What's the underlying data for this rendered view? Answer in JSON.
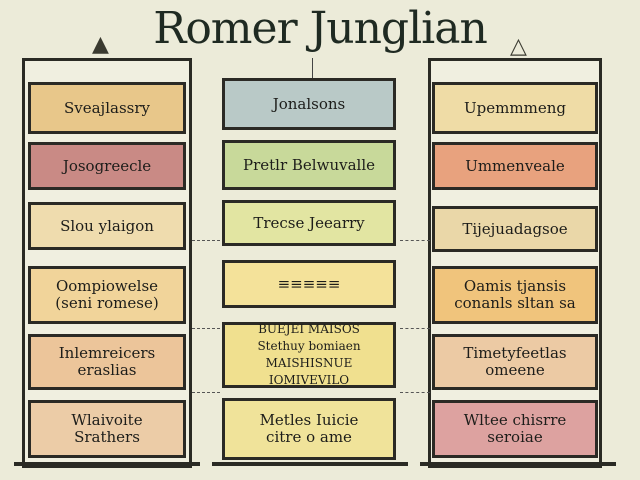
{
  "title": "Romer Junglian",
  "colors": {
    "background": "#ecebd9",
    "frame": "#2a2a24"
  },
  "columns": [
    {
      "name": "left",
      "boxes": [
        {
          "lines": [
            "Sveajlassry"
          ],
          "color": "#e8c78a"
        },
        {
          "lines": [
            "Josogreecle"
          ],
          "color": "#c98a85"
        },
        {
          "lines": [
            "Slou ylaigon"
          ],
          "color": "#efdcae"
        },
        {
          "lines": [
            "Oompiowelse",
            "(seni  romese)"
          ],
          "color": "#f1d49a"
        },
        {
          "lines": [
            "Inlemreicers",
            "eraslias"
          ],
          "color": "#ecc59a"
        },
        {
          "lines": [
            "Wlaivoite",
            "Srathers"
          ],
          "color": "#eccca7"
        }
      ]
    },
    {
      "name": "middle",
      "boxes": [
        {
          "lines": [
            "Jonalsons"
          ],
          "color": "#b9c9c7"
        },
        {
          "lines": [
            "Pretlr Belwuvalle"
          ],
          "color": "#c8d99a"
        },
        {
          "lines": [
            "Trecse Jeearry"
          ],
          "color": "#e2e5a2"
        },
        {
          "lines": [
            "≡≡≡≡≡"
          ],
          "color": "#f4e29a"
        },
        {
          "lines": [
            "BUEJEI MAISOS",
            "Stethuy bomiaen",
            "MAISHISNUE IOMIVEVILO"
          ],
          "color": "#f0e08f"
        },
        {
          "lines": [
            "Metles Iuicie",
            "citre o ame"
          ],
          "color": "#f0e39a"
        }
      ]
    },
    {
      "name": "right",
      "boxes": [
        {
          "lines": [
            "Upemmmeng"
          ],
          "color": "#efdca6"
        },
        {
          "lines": [
            "Ummenveale"
          ],
          "color": "#e8a27e"
        },
        {
          "lines": [
            "Tijejuadagsoe"
          ],
          "color": "#ead7a8"
        },
        {
          "lines": [
            "Oamis tjansis",
            "conanls  sltan sa"
          ],
          "color": "#f0c47c"
        },
        {
          "lines": [
            "Timetyfeetlas",
            "omeene"
          ],
          "color": "#eccaa4"
        },
        {
          "lines": [
            "Wltee chisrre",
            "seroiae"
          ],
          "color": "#dda2a0"
        }
      ]
    }
  ]
}
